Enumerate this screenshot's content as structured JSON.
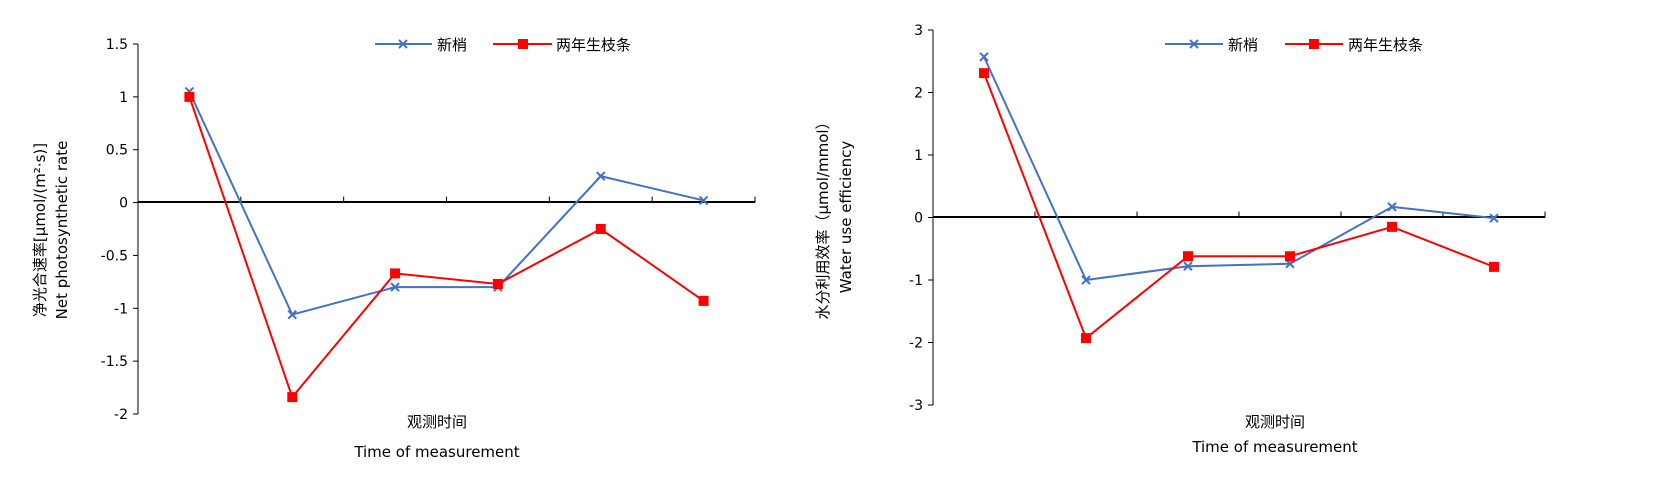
{
  "chart_data": [
    {
      "type": "line",
      "x": [
        "1",
        "2",
        "3",
        "4",
        "5",
        "6"
      ],
      "ylabel_zh": "净光合速率[μmol/(m²·s)]",
      "ylabel_en": "Net photosynthetic rate",
      "xlabel_zh": "观测时间",
      "xlabel_en": "Time of measurement",
      "ylim": [
        -2,
        1.5
      ],
      "yticks": [
        "1.5",
        "1",
        "0.5",
        "0",
        "-0.5",
        "-1",
        "-1.5",
        "-2"
      ],
      "legend_position": "top-center",
      "series": [
        {
          "name": "新梢",
          "color": "#4472C4",
          "marker": "x",
          "values": [
            1.05,
            -1.06,
            -0.8,
            -0.8,
            0.25,
            0.02
          ]
        },
        {
          "name": "两年生枝条",
          "color": "#FF0000",
          "marker": "square",
          "values": [
            1.0,
            -1.84,
            -0.67,
            -0.77,
            -0.25,
            -0.93
          ]
        }
      ]
    },
    {
      "type": "line",
      "x": [
        "1",
        "2",
        "3",
        "4",
        "5",
        "6"
      ],
      "ylabel_zh": "水分利用效率（μmol/mmol）",
      "ylabel_en": "Water use efficiency",
      "xlabel_zh": "观测时间",
      "xlabel_en": "Time of measurement",
      "ylim": [
        -3,
        3
      ],
      "yticks": [
        "3",
        "2",
        "1",
        "0",
        "-1",
        "-2",
        "-3"
      ],
      "legend_position": "top-center",
      "series": [
        {
          "name": "新梢",
          "color": "#4472C4",
          "marker": "x",
          "values": [
            2.57,
            -1.0,
            -0.78,
            -0.74,
            0.17,
            -0.01
          ]
        },
        {
          "name": "两年生枝条",
          "color": "#FF0000",
          "marker": "square",
          "values": [
            2.31,
            -1.93,
            -0.62,
            -0.62,
            -0.15,
            -0.79
          ]
        }
      ]
    }
  ]
}
